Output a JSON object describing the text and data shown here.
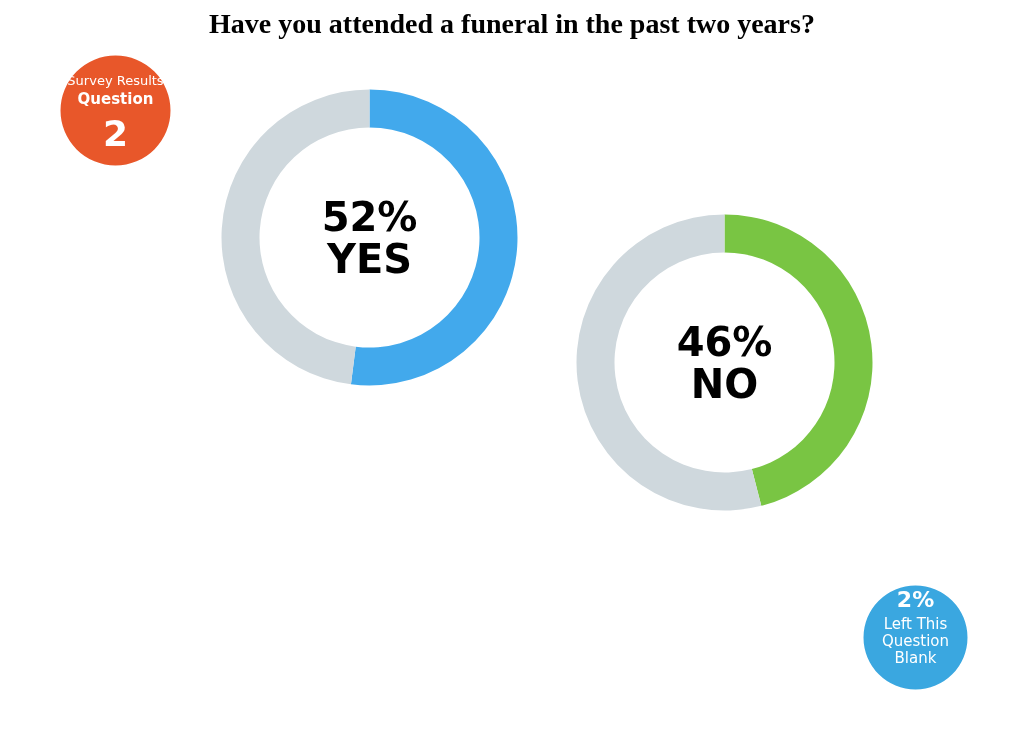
{
  "chart_data": [
    {
      "type": "donut",
      "title": "Have you attended a funeral in the past two years?",
      "categories": [
        "YES",
        null
      ],
      "values": [
        52,
        48
      ],
      "colors": [
        "#42a9ec",
        "#cfd8dd"
      ],
      "value_labels": [
        "52%",
        null
      ],
      "annotations": [
        "Survey Results",
        "Question",
        "2"
      ]
    },
    {
      "type": "donut",
      "categories": [
        "NO",
        null
      ],
      "values": [
        46,
        54
      ],
      "colors": [
        "#79c543",
        "#cfd8dd"
      ],
      "value_labels": [
        "46%",
        null
      ]
    },
    {
      "type": "other",
      "annotations": [
        "2%",
        "Left This Question Blank"
      ]
    }
  ]
}
